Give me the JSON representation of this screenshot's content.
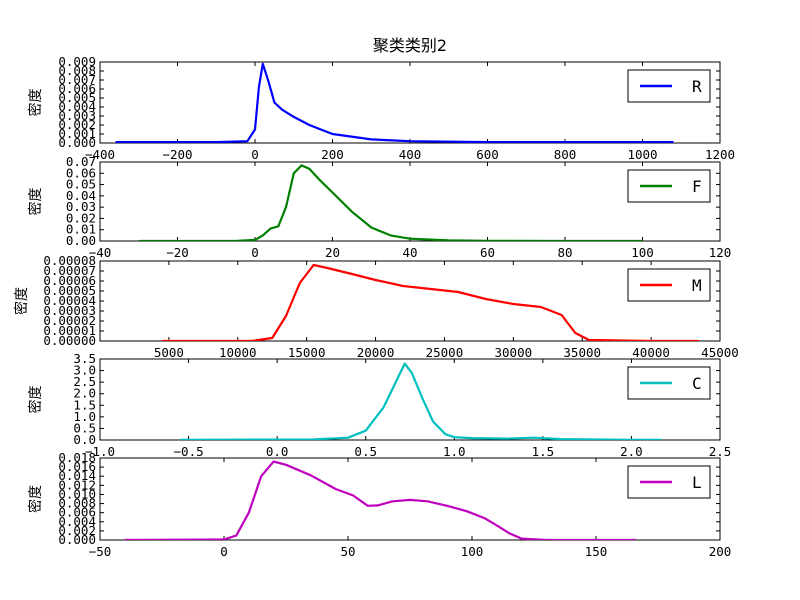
{
  "chart_data": {
    "type": "line",
    "title": "聚类类别2",
    "grid": false,
    "subplots": [
      {
        "series_name": "R",
        "color": "#0000ff",
        "ylabel": "密度",
        "xlim": [
          -400,
          1200
        ],
        "ylim": [
          0,
          0.009
        ],
        "xticks": [
          -400,
          -200,
          0,
          200,
          400,
          600,
          800,
          1000,
          1200
        ],
        "xtick_labels": [
          "−400",
          "−200",
          "0",
          "200",
          "400",
          "600",
          "800",
          "1000",
          "1200"
        ],
        "yticks": [
          0,
          0.001,
          0.002,
          0.003,
          0.004,
          0.005,
          0.006,
          0.007,
          0.008,
          0.009
        ],
        "ytick_labels": [
          "0.000",
          "0.001",
          "0.002",
          "0.003",
          "0.004",
          "0.005",
          "0.006",
          "0.007",
          "0.008",
          "0.009"
        ],
        "legend_loc": "right",
        "x": [
          -360,
          -100,
          -20,
          0,
          10,
          20,
          35,
          50,
          70,
          100,
          140,
          200,
          300,
          400,
          600,
          800,
          1000,
          1080
        ],
        "y": [
          0.0001,
          0.0001,
          0.0002,
          0.0015,
          0.0062,
          0.0088,
          0.0068,
          0.0045,
          0.0037,
          0.0029,
          0.002,
          0.001,
          0.0004,
          0.0002,
          0.0001,
          0.0001,
          0.0001,
          0.0001
        ]
      },
      {
        "series_name": "F",
        "color": "#008000",
        "ylabel": "密度",
        "xlim": [
          -40,
          120
        ],
        "ylim": [
          0,
          0.07
        ],
        "xticks": [
          -40,
          -20,
          0,
          20,
          40,
          60,
          80,
          100,
          120
        ],
        "xtick_labels": [
          "−40",
          "−20",
          "0",
          "20",
          "40",
          "60",
          "80",
          "100",
          "120"
        ],
        "yticks": [
          0,
          0.01,
          0.02,
          0.03,
          0.04,
          0.05,
          0.06,
          0.07
        ],
        "ytick_labels": [
          "0.00",
          "0.01",
          "0.02",
          "0.03",
          "0.04",
          "0.05",
          "0.06",
          "0.07"
        ],
        "legend_loc": "right",
        "x": [
          -30,
          -5,
          0,
          2,
          4,
          6,
          8,
          10,
          12,
          14,
          17,
          20,
          25,
          30,
          35,
          40,
          50,
          60,
          80,
          100
        ],
        "y": [
          0,
          0,
          0.001,
          0.005,
          0.011,
          0.013,
          0.03,
          0.06,
          0.067,
          0.064,
          0.053,
          0.043,
          0.026,
          0.012,
          0.005,
          0.002,
          0.0005,
          0.0002,
          0,
          0
        ]
      },
      {
        "series_name": "M",
        "color": "#ff0000",
        "ylabel": "密度",
        "xlim": [
          0,
          45000
        ],
        "ylim": [
          0,
          8e-05
        ],
        "xticks": [
          5000,
          10000,
          15000,
          20000,
          25000,
          30000,
          35000,
          40000,
          45000
        ],
        "xtick_labels": [
          "5000",
          "10000",
          "15000",
          "20000",
          "25000",
          "30000",
          "35000",
          "40000",
          "45000"
        ],
        "yticks": [
          0,
          1e-05,
          2e-05,
          3e-05,
          4e-05,
          5e-05,
          6e-05,
          7e-05,
          8e-05
        ],
        "ytick_labels": [
          "0.00000",
          "0.00001",
          "0.00002",
          "0.00003",
          "0.00004",
          "0.00005",
          "0.00006",
          "0.00007",
          "0.00008"
        ],
        "legend_loc": "right",
        "x": [
          4500,
          11000,
          12500,
          13500,
          14500,
          15500,
          16500,
          18000,
          20000,
          22000,
          24000,
          26000,
          28000,
          30000,
          32000,
          33500,
          34500,
          35500,
          40000,
          43500
        ],
        "y": [
          0,
          0,
          3e-06,
          2.5e-05,
          5.8e-05,
          7.6e-05,
          7.3e-05,
          6.8e-05,
          6.1e-05,
          5.5e-05,
          5.2e-05,
          4.9e-05,
          4.2e-05,
          3.7e-05,
          3.4e-05,
          2.6e-05,
          8e-06,
          1e-06,
          0,
          0
        ]
      },
      {
        "series_name": "C",
        "color": "#00bfbf",
        "ylabel": "密度",
        "xlim": [
          -1,
          2.5
        ],
        "ylim": [
          0,
          3.5
        ],
        "xticks": [
          -1,
          -0.5,
          0,
          0.5,
          1,
          1.5,
          2,
          2.5
        ],
        "xtick_labels": [
          "−1.0",
          "−0.5",
          "0.0",
          "0.5",
          "1.0",
          "1.5",
          "2.0",
          "2.5"
        ],
        "yticks": [
          0,
          0.5,
          1,
          1.5,
          2,
          2.5,
          3,
          3.5
        ],
        "ytick_labels": [
          "0.0",
          "0.5",
          "1.0",
          "1.5",
          "2.0",
          "2.5",
          "3.0",
          "3.5"
        ],
        "legend_loc": "right",
        "x": [
          -0.55,
          0.2,
          0.4,
          0.5,
          0.6,
          0.67,
          0.72,
          0.76,
          0.82,
          0.88,
          0.95,
          1.0,
          1.1,
          1.3,
          1.45,
          1.6,
          1.8,
          2.0,
          2.17
        ],
        "y": [
          0.01,
          0.02,
          0.1,
          0.4,
          1.4,
          2.5,
          3.3,
          2.9,
          1.8,
          0.8,
          0.25,
          0.12,
          0.08,
          0.06,
          0.1,
          0.04,
          0.02,
          0.01,
          0.01
        ]
      },
      {
        "series_name": "L",
        "color": "#bf00bf",
        "ylabel": "密度",
        "xlim": [
          -50,
          200
        ],
        "ylim": [
          0,
          0.018
        ],
        "xticks": [
          -50,
          0,
          50,
          100,
          150,
          200
        ],
        "xtick_labels": [
          "−50",
          "0",
          "50",
          "100",
          "150",
          "200"
        ],
        "yticks": [
          0,
          0.002,
          0.004,
          0.006,
          0.008,
          0.01,
          0.012,
          0.014,
          0.016,
          0.018
        ],
        "ytick_labels": [
          "0.000",
          "0.002",
          "0.004",
          "0.006",
          "0.008",
          "0.010",
          "0.012",
          "0.014",
          "0.016",
          "0.018"
        ],
        "legend_loc": "right",
        "x": [
          -40,
          0,
          5,
          10,
          15,
          20,
          25,
          35,
          45,
          52,
          58,
          62,
          68,
          75,
          82,
          90,
          98,
          105,
          110,
          115,
          120,
          130,
          166
        ],
        "y": [
          0,
          0.0001,
          0.001,
          0.006,
          0.014,
          0.0172,
          0.0165,
          0.0142,
          0.0112,
          0.0098,
          0.0075,
          0.0076,
          0.0085,
          0.0088,
          0.0085,
          0.0075,
          0.0063,
          0.0048,
          0.0032,
          0.0015,
          0.0003,
          0,
          0
        ]
      }
    ]
  }
}
